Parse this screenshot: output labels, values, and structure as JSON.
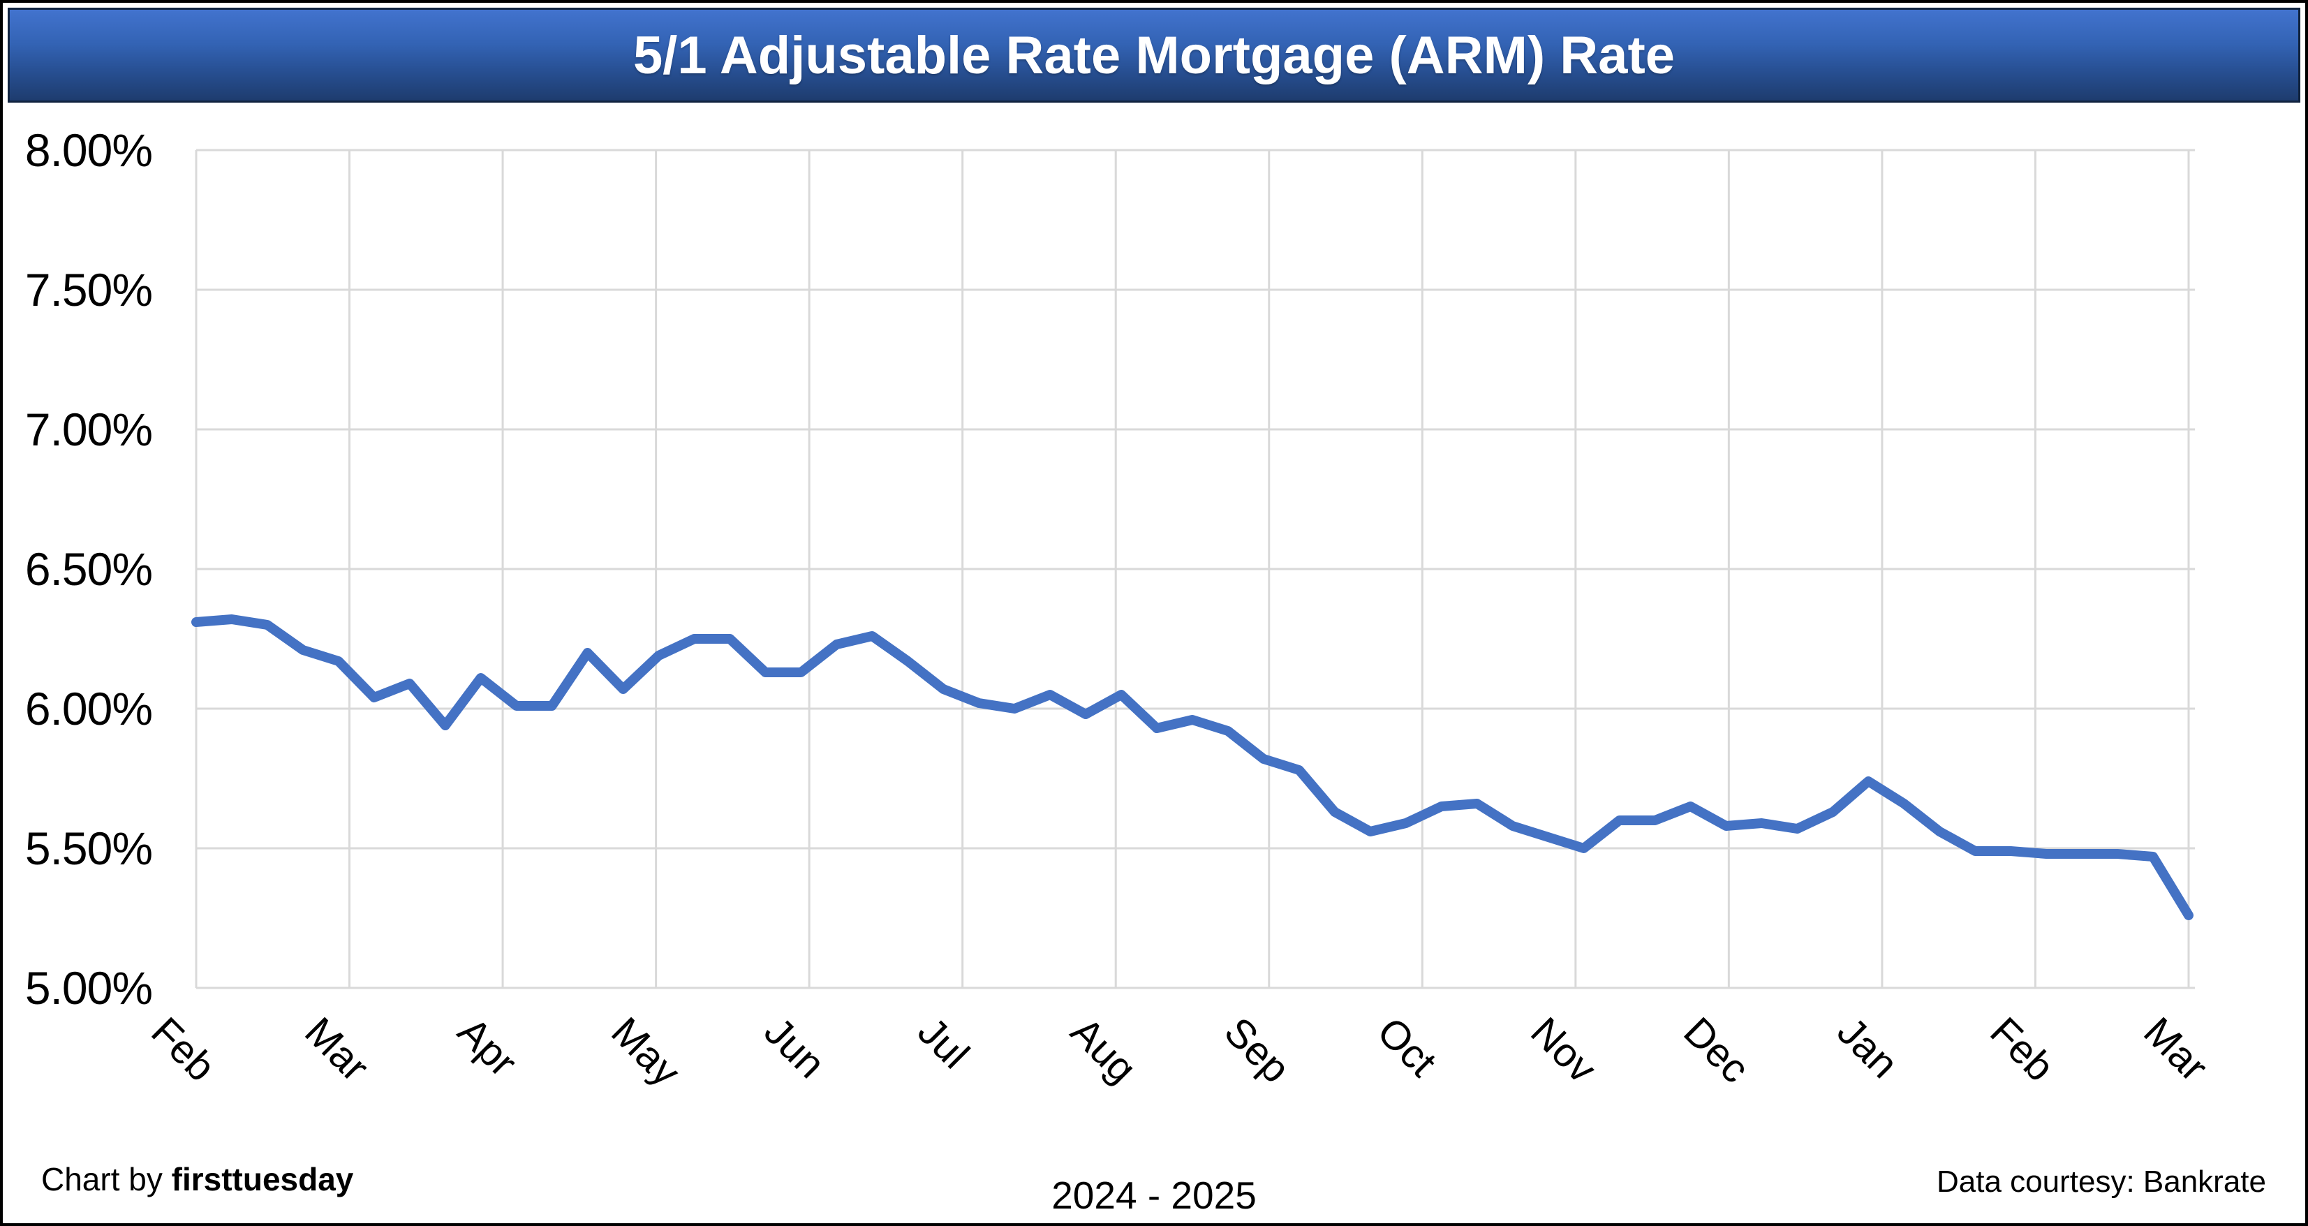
{
  "banner": {
    "title": "5/1 Adjustable Rate Mortgage (ARM) Rate"
  },
  "footer": {
    "credit_prefix": "Chart by ",
    "credit_brand": "firsttuesday",
    "period": "2024 - 2025",
    "source": "Data courtesy: Bankrate"
  },
  "colors": {
    "line": "#4472C4",
    "gridline": "#d9d9d9",
    "banner_top": "#4273ce",
    "banner_bottom": "#1e3c6e",
    "text": "#000000"
  },
  "chart_data": {
    "type": "line",
    "title": "5/1 Adjustable Rate Mortgage (ARM) Rate",
    "x_tick_labels": [
      "Feb",
      "Mar",
      "Apr",
      "May",
      "Jun",
      "Jul",
      "Aug",
      "Sep",
      "Oct",
      "Nov",
      "Dec",
      "Jan",
      "Feb",
      "Mar"
    ],
    "y_tick_labels": [
      "8.00%",
      "7.50%",
      "7.00%",
      "6.50%",
      "6.00%",
      "5.50%",
      "5.00%"
    ],
    "ylim": [
      5.0,
      8.0
    ],
    "y_step": 0.5,
    "grid": true,
    "legend_position": "none",
    "series": [
      {
        "name": "5/1 ARM rate",
        "color": "#4472C4",
        "values": [
          6.31,
          6.32,
          6.3,
          6.21,
          6.17,
          6.04,
          6.09,
          5.94,
          6.11,
          6.01,
          6.01,
          6.2,
          6.07,
          6.19,
          6.25,
          6.25,
          6.13,
          6.13,
          6.23,
          6.26,
          6.17,
          6.07,
          6.02,
          6.0,
          6.05,
          5.98,
          6.05,
          5.93,
          5.96,
          5.92,
          5.82,
          5.78,
          5.63,
          5.56,
          5.59,
          5.65,
          5.66,
          5.58,
          5.54,
          5.5,
          5.6,
          5.6,
          5.65,
          5.58,
          5.59,
          5.57,
          5.63,
          5.74,
          5.66,
          5.56,
          5.49,
          5.49,
          5.48,
          5.48,
          5.48,
          5.47,
          5.26
        ]
      }
    ]
  }
}
